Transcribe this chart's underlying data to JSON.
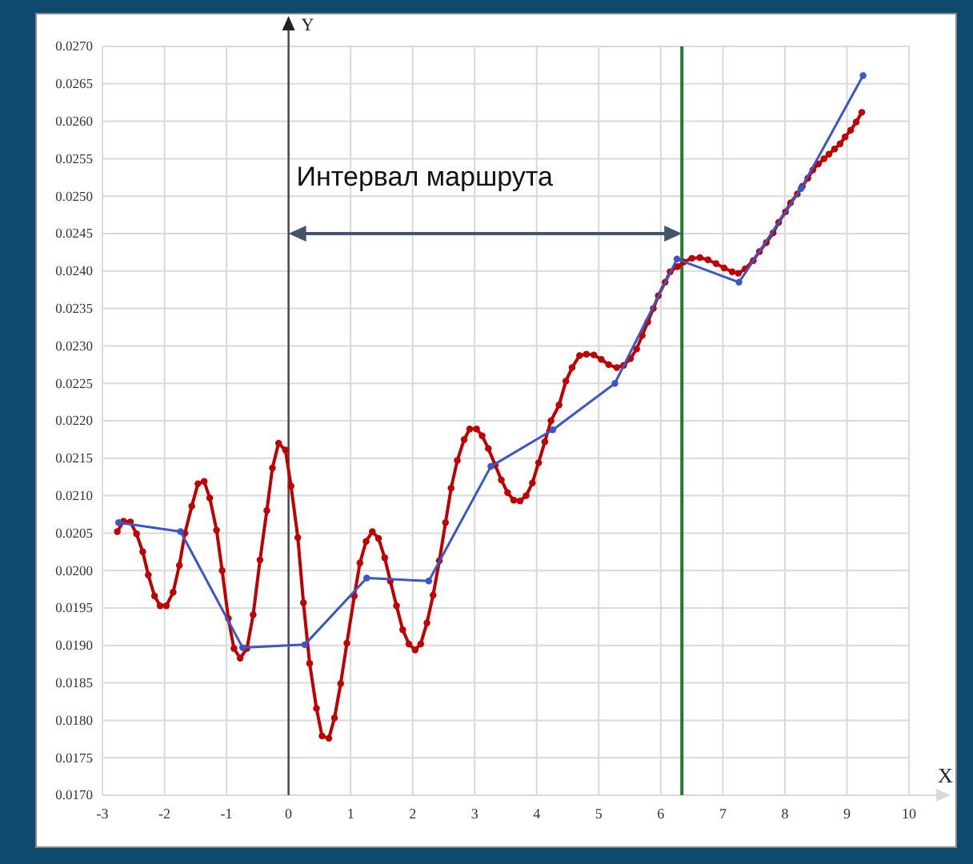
{
  "chart_data": {
    "type": "line",
    "xlabel": "X",
    "ylabel": "Y",
    "xlim": [
      -3,
      10
    ],
    "xticks": [
      -3,
      -2,
      -1,
      0,
      1,
      2,
      3,
      4,
      5,
      6,
      7,
      8,
      9,
      10
    ],
    "ylim": [
      0.017,
      0.027
    ],
    "yticks": [
      {
        "value": 0.017,
        "label": "0.0170"
      },
      {
        "value": 0.0175,
        "label": "0.0175"
      },
      {
        "value": 0.018,
        "label": "0.0180"
      },
      {
        "value": 0.0185,
        "label": "0.0185"
      },
      {
        "value": 0.019,
        "label": "0.0190"
      },
      {
        "value": 0.0195,
        "label": "0.0195"
      },
      {
        "value": 0.02,
        "label": "0.0200"
      },
      {
        "value": 0.0205,
        "label": "0.0205"
      },
      {
        "value": 0.021,
        "label": "0.0210"
      },
      {
        "value": 0.0215,
        "label": "0.0215"
      },
      {
        "value": 0.022,
        "label": "0.0220"
      },
      {
        "value": 0.0225,
        "label": "0.0225"
      },
      {
        "value": 0.023,
        "label": "0.0230"
      },
      {
        "value": 0.0235,
        "label": "0.0235"
      },
      {
        "value": 0.024,
        "label": "0.0240"
      },
      {
        "value": 0.0245,
        "label": "0.0245"
      },
      {
        "value": 0.025,
        "label": "0.0250"
      },
      {
        "value": 0.0255,
        "label": "0.0255"
      },
      {
        "value": 0.026,
        "label": "0.0260"
      },
      {
        "value": 0.0265,
        "label": "0.0265"
      },
      {
        "value": 0.027,
        "label": "0.0270"
      }
    ],
    "grid": true,
    "marker": "circle",
    "line_style": "solid",
    "series": [
      {
        "color": "#3a56c8",
        "x": [
          -2.74,
          -1.74,
          -0.74,
          0.26,
          1.26,
          2.26,
          3.26,
          4.26,
          5.26,
          6.26,
          7.26,
          8.26,
          9.26
        ],
        "values": [
          0.02064,
          0.02052,
          0.01897,
          0.01901,
          0.0199,
          0.01986,
          0.02139,
          0.02188,
          0.0225,
          0.02416,
          0.02385,
          0.0251,
          0.02661
        ]
      },
      {
        "color": "#c00000",
        "x": [
          -2.76,
          -2.66,
          -2.55,
          -2.45,
          -2.35,
          -2.26,
          -2.16,
          -2.07,
          -1.97,
          -1.86,
          -1.76,
          -1.67,
          -1.56,
          -1.46,
          -1.36,
          -1.27,
          -1.16,
          -1.07,
          -0.97,
          -0.88,
          -0.78,
          -0.67,
          -0.57,
          -0.46,
          -0.35,
          -0.26,
          -0.16,
          -0.05,
          0.04,
          0.15,
          0.24,
          0.34,
          0.45,
          0.54,
          0.65,
          0.74,
          0.84,
          0.94,
          1.06,
          1.15,
          1.25,
          1.35,
          1.45,
          1.55,
          1.64,
          1.74,
          1.84,
          1.94,
          2.04,
          2.13,
          2.23,
          2.33,
          2.43,
          2.53,
          2.62,
          2.72,
          2.83,
          2.92,
          3.03,
          3.12,
          3.22,
          3.33,
          3.43,
          3.53,
          3.63,
          3.73,
          3.83,
          3.93,
          4.03,
          4.13,
          4.23,
          4.36,
          4.47,
          4.57,
          4.69,
          4.8,
          4.92,
          5.04,
          5.16,
          5.29,
          5.4,
          5.51,
          5.61,
          5.7,
          5.79,
          5.88,
          5.96,
          6.07,
          6.15,
          6.27,
          6.37,
          6.5,
          6.63,
          6.76,
          6.89,
          7.02,
          7.15,
          7.25,
          7.36,
          7.49,
          7.59,
          7.7,
          7.81,
          7.9,
          8.01,
          8.09,
          8.2,
          8.28,
          8.37,
          8.45,
          8.54,
          8.63,
          8.71,
          8.8,
          8.89,
          8.97,
          9.06,
          9.15,
          9.24
        ],
        "values": [
          0.02052,
          0.02066,
          0.02065,
          0.02049,
          0.02025,
          0.01994,
          0.01966,
          0.01953,
          0.01953,
          0.01971,
          0.02007,
          0.0205,
          0.02086,
          0.02116,
          0.02119,
          0.02097,
          0.02054,
          0.02,
          0.01936,
          0.01896,
          0.01883,
          0.01896,
          0.01941,
          0.02014,
          0.0208,
          0.02137,
          0.0217,
          0.02161,
          0.02113,
          0.02044,
          0.01957,
          0.01876,
          0.01816,
          0.01779,
          0.01776,
          0.01803,
          0.01849,
          0.01903,
          0.01966,
          0.0201,
          0.02039,
          0.02052,
          0.02043,
          0.02017,
          0.01986,
          0.01953,
          0.01921,
          0.01902,
          0.01894,
          0.01902,
          0.0193,
          0.01967,
          0.02013,
          0.02064,
          0.0211,
          0.02147,
          0.02175,
          0.02189,
          0.02189,
          0.0218,
          0.02163,
          0.02141,
          0.02121,
          0.02104,
          0.02094,
          0.02093,
          0.021,
          0.02117,
          0.02144,
          0.02172,
          0.022,
          0.02221,
          0.02253,
          0.02271,
          0.02287,
          0.02289,
          0.02288,
          0.02282,
          0.02275,
          0.02271,
          0.02274,
          0.02283,
          0.02296,
          0.02314,
          0.02332,
          0.0235,
          0.02367,
          0.02385,
          0.02399,
          0.02406,
          0.02412,
          0.02417,
          0.02418,
          0.02415,
          0.0241,
          0.02404,
          0.02399,
          0.02397,
          0.02403,
          0.02414,
          0.02426,
          0.02438,
          0.02451,
          0.02465,
          0.02479,
          0.02491,
          0.02503,
          0.02513,
          0.02524,
          0.02535,
          0.02543,
          0.0255,
          0.02556,
          0.02563,
          0.0257,
          0.02579,
          0.02588,
          0.02599,
          0.02612
        ]
      }
    ],
    "ref_lines": [
      {
        "axis": "x",
        "value": 6.34,
        "color": "#217a2f"
      }
    ],
    "annotations": [
      "Интервал маршрута"
    ]
  }
}
